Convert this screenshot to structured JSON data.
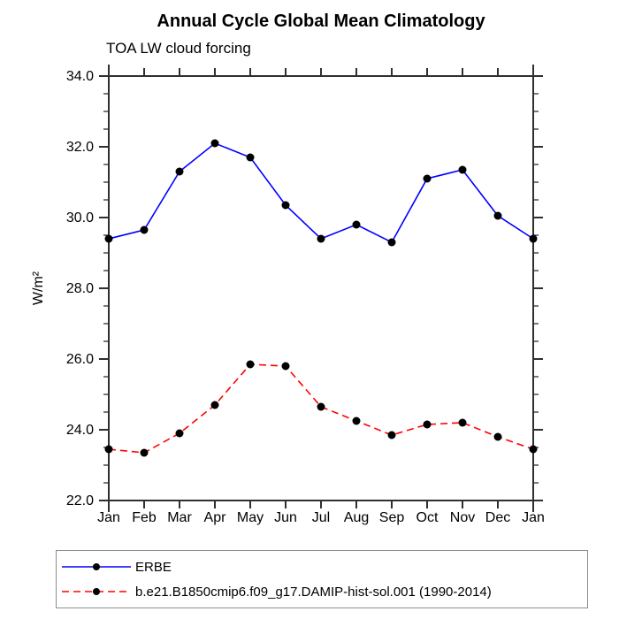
{
  "chart_data": {
    "type": "line",
    "title": "Annual Cycle Global Mean Climatology",
    "subtitle": "TOA LW cloud forcing",
    "ylabel": "W/m²",
    "xlabel": "",
    "categories": [
      "Jan",
      "Feb",
      "Mar",
      "Apr",
      "May",
      "Jun",
      "Jul",
      "Aug",
      "Sep",
      "Oct",
      "Nov",
      "Dec",
      "Jan"
    ],
    "ylim": [
      22.0,
      34.0
    ],
    "ytick_major": 2.0,
    "ytick_minor": 0.5,
    "ytick_labels": [
      "34.0",
      "32.0",
      "30.0",
      "28.0",
      "26.0",
      "24.0",
      "22.0"
    ],
    "grid": false,
    "legend_position": "bottom-left-box",
    "marker": {
      "shape": "circle",
      "color": "#000000"
    },
    "axis_color": "#2f2f2f",
    "series": [
      {
        "name": "ERBE",
        "color": "#0000ff",
        "line_style": "solid",
        "values": [
          29.4,
          29.65,
          31.3,
          32.1,
          31.7,
          30.35,
          29.4,
          29.8,
          29.3,
          31.1,
          31.35,
          30.05,
          29.4
        ]
      },
      {
        "name": "b.e21.B1850cmip6.f09_g17.DAMIP-hist-sol.001 (1990-2014)",
        "color": "#ff0000",
        "line_style": "dashed",
        "values": [
          23.45,
          23.35,
          23.9,
          24.7,
          25.85,
          25.8,
          24.65,
          24.25,
          23.85,
          24.15,
          24.2,
          23.8,
          23.45
        ]
      }
    ]
  }
}
